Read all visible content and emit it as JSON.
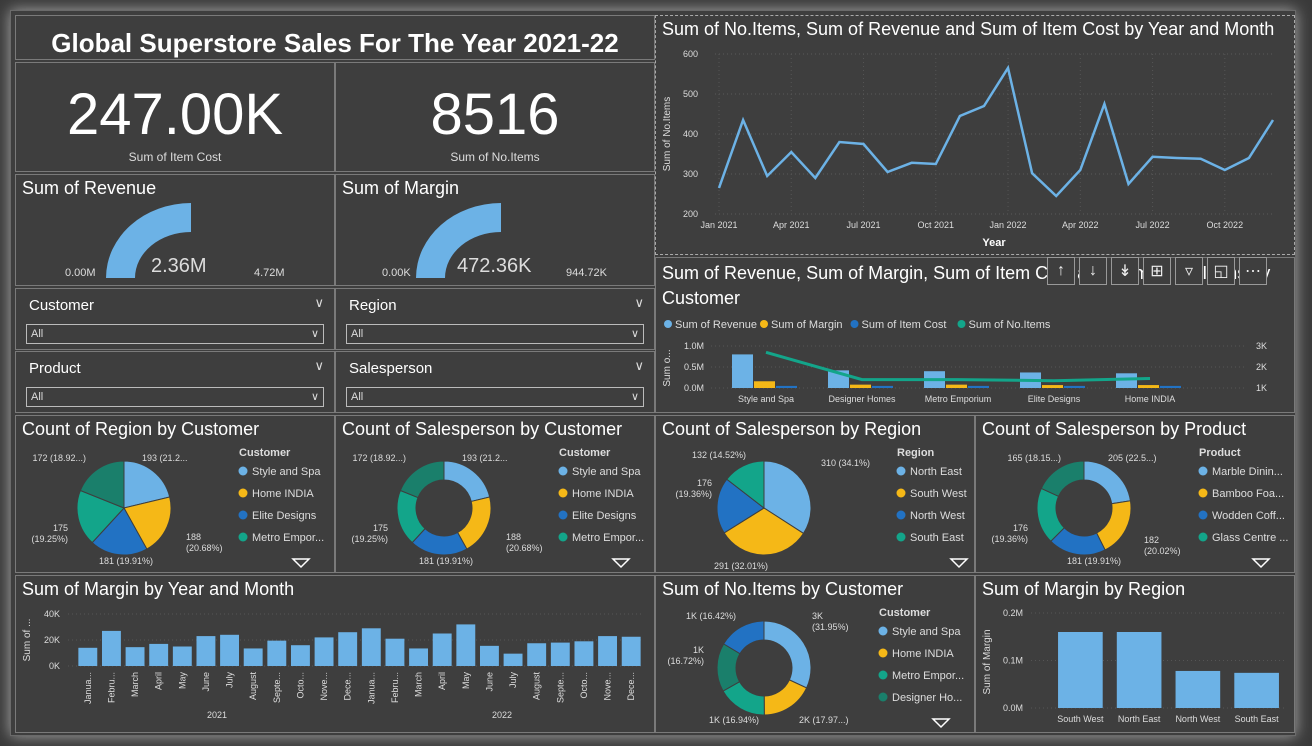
{
  "colors": {
    "blue": "#6cb2e6",
    "yellow": "#f5b817",
    "navy": "#2272c3",
    "teal": "#13a58a",
    "darkteal": "#1a7f6b"
  },
  "header": {
    "title": "Global Superstore Sales For The Year 2021-22"
  },
  "kpis": {
    "item_cost": {
      "value": "247.00K",
      "label": "Sum of Item Cost"
    },
    "no_items": {
      "value": "8516",
      "label": "Sum of No.Items"
    }
  },
  "gauges": {
    "revenue": {
      "title": "Sum of Revenue",
      "min": "0.00M",
      "value": "2.36M",
      "max": "4.72M",
      "fraction": 0.5
    },
    "margin": {
      "title": "Sum of Margin",
      "min": "0.00K",
      "value": "472.36K",
      "max": "944.72K",
      "fraction": 0.5
    }
  },
  "slicers": {
    "customer": {
      "label": "Customer",
      "value": "All"
    },
    "region": {
      "label": "Region",
      "value": "All"
    },
    "product": {
      "label": "Product",
      "value": "All"
    },
    "salesperson": {
      "label": "Salesperson",
      "value": "All"
    }
  },
  "toolbar": {
    "icons": [
      "arrow-up-icon",
      "arrow-down-icon",
      "double-arrow-down-icon",
      "expand-hierarchy-icon",
      "filter-icon",
      "focus-mode-icon",
      "more-options-icon"
    ]
  },
  "chart_data": [
    {
      "id": "items_by_month",
      "type": "line",
      "title": "Sum of No.Items, Sum of Revenue and Sum of Item Cost by Year and Month",
      "xlabel": "Year",
      "ylabel": "Sum of No.Items",
      "ylim": [
        200,
        600
      ],
      "yticks": [
        "200",
        "300",
        "400",
        "500",
        "600"
      ],
      "xticks": [
        "Jan 2021",
        "Apr 2021",
        "Jul 2021",
        "Oct 2021",
        "Jan 2022",
        "Apr 2022",
        "Jul 2022",
        "Oct 2022"
      ],
      "values": [
        265,
        435,
        295,
        355,
        290,
        380,
        375,
        305,
        328,
        325,
        445,
        470,
        565,
        302,
        245,
        310,
        475,
        275,
        343,
        340,
        338,
        310,
        340,
        435
      ]
    },
    {
      "id": "combo_by_customer",
      "type": "bar",
      "title": "Sum of Revenue, Sum of Margin, Sum of Item Cost and Sum of No.Items by Customer",
      "legend": [
        "Sum of Revenue",
        "Sum of Margin",
        "Sum of Item Cost",
        "Sum of No.Items"
      ],
      "ylabel": "Sum o...",
      "yticks": [
        "0.0M",
        "0.5M",
        "1.0M"
      ],
      "y2ticks": [
        "1K",
        "2K",
        "3K"
      ],
      "categories": [
        "Style and Spa",
        "Designer Homes",
        "Metro Emporium",
        "Elite Designs",
        "Home INDIA"
      ],
      "series": [
        {
          "name": "Sum of Revenue",
          "values": [
            0.8,
            0.42,
            0.4,
            0.37,
            0.35
          ]
        },
        {
          "name": "Sum of Margin",
          "values": [
            0.16,
            0.08,
            0.08,
            0.07,
            0.07
          ]
        },
        {
          "name": "Sum of Item Cost",
          "values": [
            0.05,
            0.05,
            0.05,
            0.05,
            0.05
          ]
        },
        {
          "name": "Sum of No.Items",
          "values": [
            2700,
            1400,
            1400,
            1350,
            1450
          ]
        }
      ]
    },
    {
      "id": "region_by_customer",
      "type": "pie",
      "title": "Count of Region by Customer",
      "legend_title": "Customer",
      "legend": [
        "Style and Spa",
        "Home INDIA",
        "Elite Designs",
        "Metro Empor..."
      ],
      "values": [
        193,
        188,
        181,
        175,
        172
      ],
      "labels": [
        "193 (21.2...",
        "188\n(20.68%)",
        "181 (19.91%)",
        "175\n(19.25%)",
        "172 (18.92...)"
      ]
    },
    {
      "id": "salesperson_by_customer",
      "type": "pie",
      "title": "Count of Salesperson by Customer",
      "legend_title": "Customer",
      "legend": [
        "Style and Spa",
        "Home INDIA",
        "Elite Designs",
        "Metro Empor..."
      ],
      "values": [
        193,
        188,
        181,
        175,
        172
      ],
      "labels": [
        "193 (21.2...",
        "188\n(20.68%)",
        "181 (19.91%)",
        "175\n(19.25%)",
        "172 (18.92...)"
      ]
    },
    {
      "id": "salesperson_by_region",
      "type": "pie",
      "title": "Count of Salesperson by Region",
      "legend_title": "Region",
      "legend": [
        "North East",
        "South West",
        "North West",
        "South East"
      ],
      "values": [
        310,
        291,
        176,
        132
      ],
      "labels": [
        "310 (34.1%)",
        "291 (32.01%)",
        "176\n(19.36%)",
        "132 (14.52%)"
      ]
    },
    {
      "id": "salesperson_by_product",
      "type": "pie",
      "title": "Count of Salesperson by Product",
      "legend_title": "Product",
      "legend": [
        "Marble Dinin...",
        "Bamboo Foa...",
        "Wodden Coff...",
        "Glass Centre ..."
      ],
      "values": [
        205,
        182,
        181,
        176,
        165
      ],
      "labels": [
        "205 (22.5...)",
        "182\n(20.02%)",
        "181 (19.91%)",
        "176\n(19.36%)",
        "165 (18.15...)"
      ]
    },
    {
      "id": "margin_by_month",
      "type": "bar",
      "title": "Sum of Margin by Year and Month",
      "ylabel": "Sum of ...",
      "yticks": [
        "0K",
        "20K",
        "40K"
      ],
      "ylim": [
        0,
        40000
      ],
      "categories": [
        "Janua...",
        "Febru...",
        "March",
        "April",
        "May",
        "June",
        "July",
        "August",
        "Septe...",
        "Octo...",
        "Nove...",
        "Dece...",
        "Janua...",
        "Febru...",
        "March",
        "April",
        "May",
        "June",
        "July",
        "August",
        "Septe...",
        "Octo...",
        "Nove...",
        "Dece..."
      ],
      "groups": [
        "2021",
        "2022"
      ],
      "values": [
        14000,
        27000,
        14500,
        17000,
        15000,
        23000,
        24000,
        13500,
        19500,
        16000,
        22000,
        26000,
        29000,
        21000,
        13500,
        25000,
        32000,
        15500,
        9500,
        17500,
        18000,
        19000,
        23000,
        22500
      ]
    },
    {
      "id": "items_by_customer",
      "type": "pie",
      "title": "Sum of No.Items by Customer",
      "legend_title": "Customer",
      "legend": [
        "Style and Spa",
        "Home INDIA",
        "Metro Empor...",
        "Designer Ho..."
      ],
      "values": [
        2721,
        1526,
        1443,
        1424,
        1398
      ],
      "labels": [
        "3K\n(31.95%)",
        "2K (17.97...)",
        "1K (16.94%)",
        "1K\n(16.72%)",
        "1K (16.42%)"
      ]
    },
    {
      "id": "margin_by_region",
      "type": "bar",
      "title": "Sum of Margin by Region",
      "ylabel": "Sum of Margin",
      "yticks": [
        "0.0M",
        "0.1M",
        "0.2M"
      ],
      "ylim": [
        0,
        0.2
      ],
      "categories": [
        "South West",
        "North East",
        "North West",
        "South East"
      ],
      "values": [
        0.16,
        0.16,
        0.078,
        0.074
      ]
    }
  ]
}
